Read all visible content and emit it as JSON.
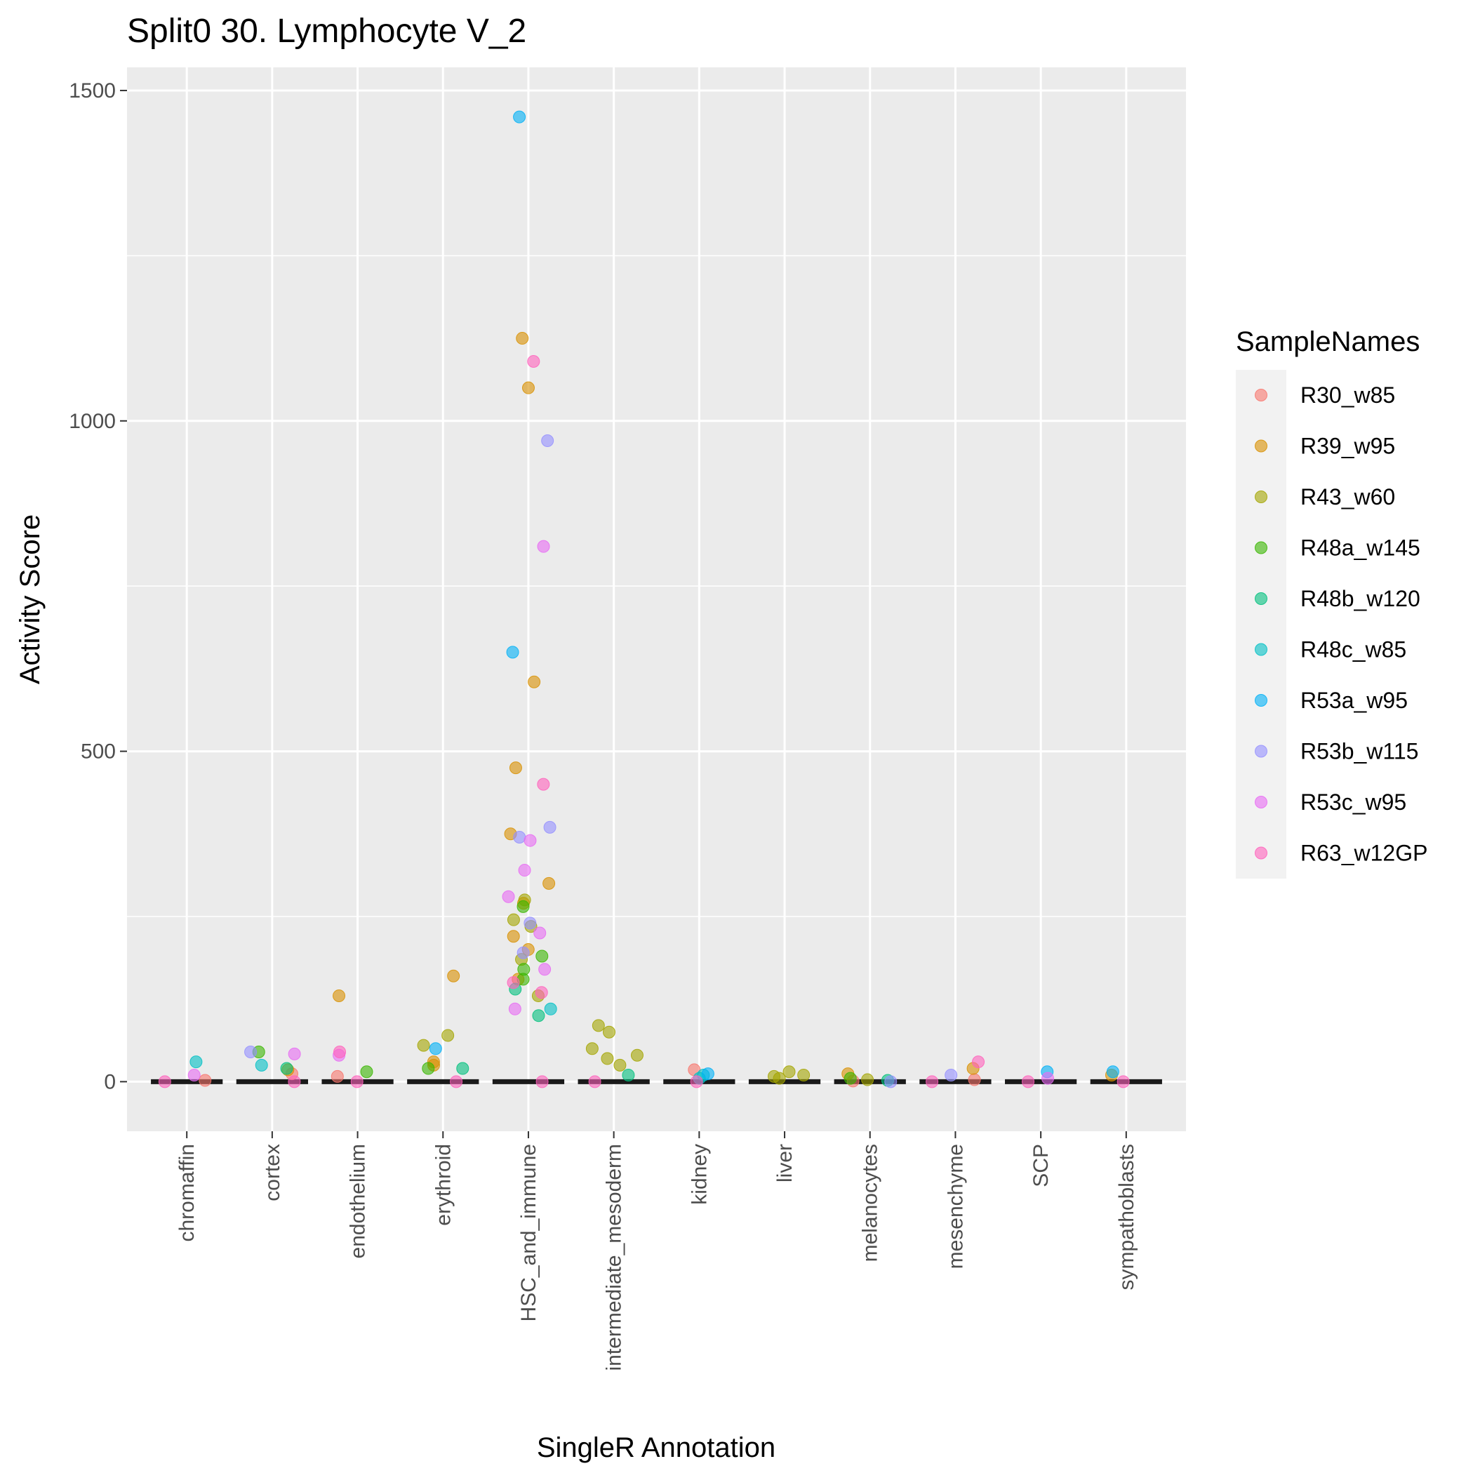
{
  "chart_data": {
    "type": "scatter",
    "title": "Split0 30. Lymphocyte V_2",
    "xlabel": "SingleR Annotation",
    "ylabel": "Activity Score",
    "ylim": [
      -75,
      1535
    ],
    "yticks": [
      0,
      500,
      1000,
      1500
    ],
    "ytick_labels": [
      "0",
      "500",
      "1000",
      "1500"
    ],
    "grid": true,
    "background": "#ebebeb",
    "categories": [
      "chromaffin",
      "cortex",
      "endothelium",
      "erythroid",
      "HSC_and_immune",
      "intermediate_mesoderm",
      "kidney",
      "liver",
      "melanocytes",
      "mesenchyme",
      "SCP",
      "sympathoblasts"
    ],
    "legend": {
      "title": "SampleNames",
      "position": "right"
    },
    "series": [
      {
        "name": "R30_w85",
        "color": "#F8766D",
        "points": [
          [
            "chromaffin",
            2
          ],
          [
            "cortex",
            12
          ],
          [
            "endothelium",
            8
          ],
          [
            "kidney",
            18
          ],
          [
            "mesenchyme",
            3
          ],
          [
            "melanocytes",
            1
          ]
        ]
      },
      {
        "name": "R39_w95",
        "color": "#D89000",
        "points": [
          [
            "HSC_and_immune",
            1125
          ],
          [
            "HSC_and_immune",
            1050
          ],
          [
            "HSC_and_immune",
            605
          ],
          [
            "HSC_and_immune",
            475
          ],
          [
            "HSC_and_immune",
            375
          ],
          [
            "HSC_and_immune",
            300
          ],
          [
            "HSC_and_immune",
            270
          ],
          [
            "HSC_and_immune",
            220
          ],
          [
            "HSC_and_immune",
            200
          ],
          [
            "HSC_and_immune",
            155
          ],
          [
            "endothelium",
            130
          ],
          [
            "erythroid",
            160
          ],
          [
            "erythroid",
            25
          ],
          [
            "erythroid",
            30
          ],
          [
            "melanocytes",
            12
          ],
          [
            "mesenchyme",
            20
          ],
          [
            "sympathoblasts",
            10
          ],
          [
            "cortex",
            18
          ]
        ]
      },
      {
        "name": "R43_w60",
        "color": "#A3A500",
        "points": [
          [
            "HSC_and_immune",
            275
          ],
          [
            "HSC_and_immune",
            245
          ],
          [
            "HSC_and_immune",
            235
          ],
          [
            "HSC_and_immune",
            185
          ],
          [
            "HSC_and_immune",
            130
          ],
          [
            "erythroid",
            70
          ],
          [
            "erythroid",
            55
          ],
          [
            "intermediate_mesoderm",
            85
          ],
          [
            "intermediate_mesoderm",
            75
          ],
          [
            "intermediate_mesoderm",
            50
          ],
          [
            "intermediate_mesoderm",
            40
          ],
          [
            "intermediate_mesoderm",
            35
          ],
          [
            "intermediate_mesoderm",
            25
          ],
          [
            "liver",
            15
          ],
          [
            "liver",
            10
          ],
          [
            "liver",
            8
          ],
          [
            "liver",
            5
          ],
          [
            "melanocytes",
            3
          ]
        ]
      },
      {
        "name": "R48a_w145",
        "color": "#39B600",
        "points": [
          [
            "HSC_and_immune",
            265
          ],
          [
            "HSC_and_immune",
            190
          ],
          [
            "HSC_and_immune",
            170
          ],
          [
            "HSC_and_immune",
            155
          ],
          [
            "cortex",
            45
          ],
          [
            "erythroid",
            20
          ],
          [
            "endothelium",
            15
          ],
          [
            "melanocytes",
            5
          ]
        ]
      },
      {
        "name": "R48b_w120",
        "color": "#00BF7D",
        "points": [
          [
            "HSC_and_immune",
            140
          ],
          [
            "HSC_and_immune",
            100
          ],
          [
            "cortex",
            20
          ],
          [
            "erythroid",
            20
          ],
          [
            "melanocytes",
            2
          ],
          [
            "intermediate_mesoderm",
            10
          ]
        ]
      },
      {
        "name": "R48c_w85",
        "color": "#00BFC4",
        "points": [
          [
            "chromaffin",
            30
          ],
          [
            "kidney",
            10
          ],
          [
            "kidney",
            5
          ],
          [
            "HSC_and_immune",
            110
          ],
          [
            "cortex",
            25
          ]
        ]
      },
      {
        "name": "R53a_w95",
        "color": "#00B0F6",
        "points": [
          [
            "HSC_and_immune",
            1460
          ],
          [
            "HSC_and_immune",
            650
          ],
          [
            "erythroid",
            50
          ],
          [
            "SCP",
            15
          ],
          [
            "kidney",
            12
          ],
          [
            "sympathoblasts",
            15
          ]
        ]
      },
      {
        "name": "R53b_w115",
        "color": "#9590FF",
        "points": [
          [
            "HSC_and_immune",
            970
          ],
          [
            "HSC_and_immune",
            385
          ],
          [
            "HSC_and_immune",
            370
          ],
          [
            "HSC_and_immune",
            240
          ],
          [
            "HSC_and_immune",
            195
          ],
          [
            "cortex",
            45
          ],
          [
            "melanocytes",
            0
          ],
          [
            "mesenchyme",
            10
          ]
        ]
      },
      {
        "name": "R53c_w95",
        "color": "#E76BF3",
        "points": [
          [
            "HSC_and_immune",
            810
          ],
          [
            "HSC_and_immune",
            365
          ],
          [
            "HSC_and_immune",
            320
          ],
          [
            "HSC_and_immune",
            280
          ],
          [
            "HSC_and_immune",
            225
          ],
          [
            "HSC_and_immune",
            170
          ],
          [
            "HSC_and_immune",
            110
          ],
          [
            "cortex",
            42
          ],
          [
            "endothelium",
            40
          ],
          [
            "chromaffin",
            10
          ],
          [
            "SCP",
            5
          ]
        ]
      },
      {
        "name": "R63_w12GP",
        "color": "#FF62BC",
        "points": [
          [
            "HSC_and_immune",
            1090
          ],
          [
            "HSC_and_immune",
            450
          ],
          [
            "HSC_and_immune",
            150
          ],
          [
            "HSC_and_immune",
            135
          ],
          [
            "endothelium",
            45
          ],
          [
            "mesenchyme",
            30
          ],
          [
            "chromaffin",
            0
          ],
          [
            "cortex",
            0
          ],
          [
            "endothelium",
            0
          ],
          [
            "erythroid",
            0
          ],
          [
            "HSC_and_immune",
            0
          ],
          [
            "intermediate_mesoderm",
            0
          ],
          [
            "kidney",
            0
          ],
          [
            "mesenchyme",
            0
          ],
          [
            "SCP",
            0
          ],
          [
            "sympathoblasts",
            0
          ]
        ]
      }
    ]
  }
}
